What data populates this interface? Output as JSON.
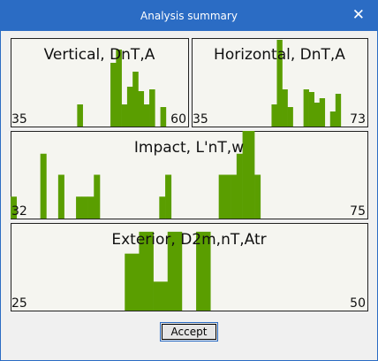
{
  "window": {
    "title": "Analysis summary",
    "close": "✕",
    "button": "Accept"
  },
  "panels": [
    {
      "title": "Vertical, DnT,A",
      "min_label": "35",
      "max_label": "60",
      "values": [
        0,
        0,
        0,
        0,
        0,
        0,
        0,
        0,
        0,
        0,
        0,
        0,
        25,
        0,
        0,
        0,
        0,
        0,
        72,
        87,
        25,
        45,
        62,
        40,
        25,
        42,
        0,
        22,
        0,
        0,
        0,
        0
      ]
    },
    {
      "title": "Horizontal, DnT,A",
      "min_label": "35",
      "max_label": "73",
      "values": [
        0,
        0,
        0,
        0,
        0,
        0,
        0,
        0,
        0,
        0,
        0,
        0,
        0,
        0,
        0,
        25,
        98,
        42,
        22,
        0,
        0,
        42,
        39,
        27,
        32,
        0,
        17,
        37,
        0,
        0,
        0,
        0,
        0
      ]
    },
    {
      "title": "Impact, L'nT,w",
      "min_label": "32",
      "max_label": "75",
      "values": [
        25,
        0,
        0,
        0,
        0,
        74,
        0,
        0,
        50,
        0,
        0,
        25,
        25,
        25,
        50,
        0,
        0,
        0,
        0,
        0,
        0,
        0,
        0,
        0,
        0,
        25,
        50,
        0,
        0,
        0,
        0,
        0,
        0,
        0,
        0,
        50,
        50,
        50,
        74,
        100,
        100,
        50,
        0,
        0,
        0,
        0,
        0,
        0,
        0,
        0,
        0,
        0,
        0,
        0,
        0,
        0,
        0,
        0,
        0,
        0
      ]
    },
    {
      "title": "Exterior, D2m,nT,Atr",
      "min_label": "25",
      "max_label": "50",
      "values": [
        0,
        0,
        0,
        0,
        0,
        0,
        0,
        0,
        65,
        90,
        33,
        90,
        0,
        90,
        0,
        0,
        0,
        0,
        0,
        0,
        0,
        0,
        0,
        0,
        0
      ]
    }
  ]
}
